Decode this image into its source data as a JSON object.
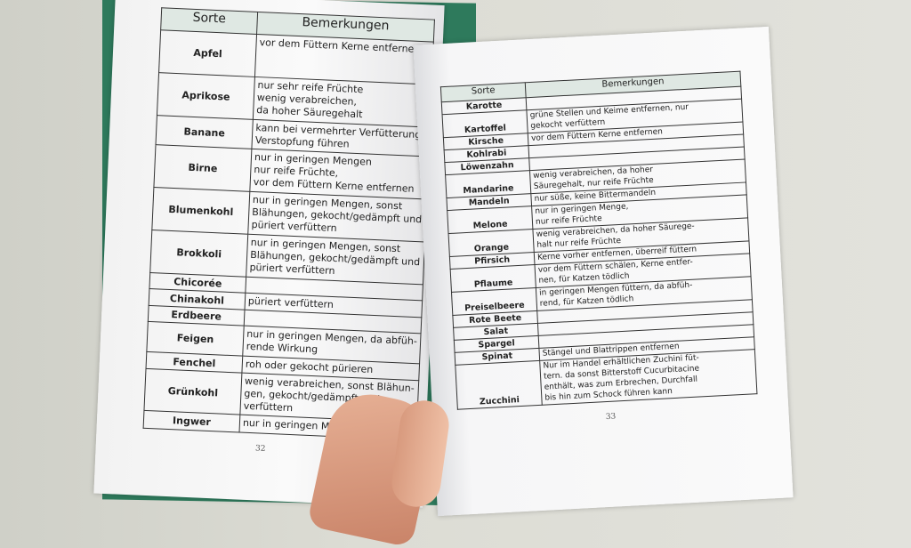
{
  "left_page": {
    "header": {
      "sort": "Sorte",
      "notes": "Bemerkungen"
    },
    "rows": [
      {
        "sort": "Apfel",
        "notes": "vor dem Füttern Kerne entfernen"
      },
      {
        "sort": "Aprikose",
        "notes": "nur sehr reife Früchte\nwenig verabreichen,\nda hoher Säuregehalt"
      },
      {
        "sort": "Banane",
        "notes": "kann bei vermehrter Verfütterung\nVerstopfung führen"
      },
      {
        "sort": "Birne",
        "notes": "nur in geringen Mengen\nnur reife Früchte,\nvor dem Füttern Kerne entfernen"
      },
      {
        "sort": "Blumenkohl",
        "notes": "nur in geringen Mengen, sonst\nBlähungen, gekocht/gedämpft und\npüriert verfüttern"
      },
      {
        "sort": "Brokkoli",
        "notes": "nur in geringen Mengen, sonst\nBlähungen, gekocht/gedämpft und\npüriert verfüttern"
      },
      {
        "sort": "Chicorée",
        "notes": ""
      },
      {
        "sort": "Chinakohl",
        "notes": "püriert verfüttern"
      },
      {
        "sort": "Erdbeere",
        "notes": ""
      },
      {
        "sort": "Feigen",
        "notes": "nur in geringen Mengen, da abfüh-\nrende Wirkung"
      },
      {
        "sort": "Fenchel",
        "notes": "roh oder gekocht pürieren"
      },
      {
        "sort": "Grünkohl",
        "notes": "wenig verabreichen, sonst Blähun-\ngen, gekocht/gedämpft und\nverfüttern"
      },
      {
        "sort": "Ingwer",
        "notes": "nur in geringen Mengen"
      }
    ],
    "page_number": "32"
  },
  "right_page": {
    "header": {
      "sort": "Sorte",
      "notes": "Bemerkungen"
    },
    "rows": [
      {
        "sort": "Karotte",
        "notes": ""
      },
      {
        "sort": "Kartoffel",
        "notes": "grüne Stellen und Keime entfernen, nur\ngekocht verfüttern"
      },
      {
        "sort": "Kirsche",
        "notes": "vor dem Füttern Kerne entfernen"
      },
      {
        "sort": "Kohlrabi",
        "notes": ""
      },
      {
        "sort": "Löwenzahn",
        "notes": ""
      },
      {
        "sort": "Mandarine",
        "notes": "wenig verabreichen, da hoher\nSäuregehalt, nur reife Früchte"
      },
      {
        "sort": "Mandeln",
        "notes": "nur süße, keine Bittermandeln"
      },
      {
        "sort": "Melone",
        "notes": "nur in geringen Menge,\nnur reife Früchte"
      },
      {
        "sort": "Orange",
        "notes": "wenig verabreichen, da hoher Säurege-\nhalt nur reife Früchte"
      },
      {
        "sort": "Pfirsich",
        "notes": "Kerne vorher entfernen, überreif füttern"
      },
      {
        "sort": "Pflaume",
        "notes": "vor dem Füttern schälen, Kerne entfer-\nnen, für Katzen tödlich"
      },
      {
        "sort": "Preiselbeere",
        "notes": "in geringen Mengen füttern, da abfüh-\nrend, für Katzen tödlich"
      },
      {
        "sort": "Rote Beete",
        "notes": ""
      },
      {
        "sort": "Salat",
        "notes": ""
      },
      {
        "sort": "Spargel",
        "notes": ""
      },
      {
        "sort": "Spinat",
        "notes": "Stängel und Blattrippen entfernen"
      },
      {
        "sort": "Zucchini",
        "notes": "Nur im Handel erhältlichen Zuchini füt-\ntern. da sonst Bitterstoff Cucurbitacine\nenthält, was zum Erbrechen, Durchfall\nbis hin zum Schock führen kann"
      }
    ],
    "page_number": "33"
  }
}
